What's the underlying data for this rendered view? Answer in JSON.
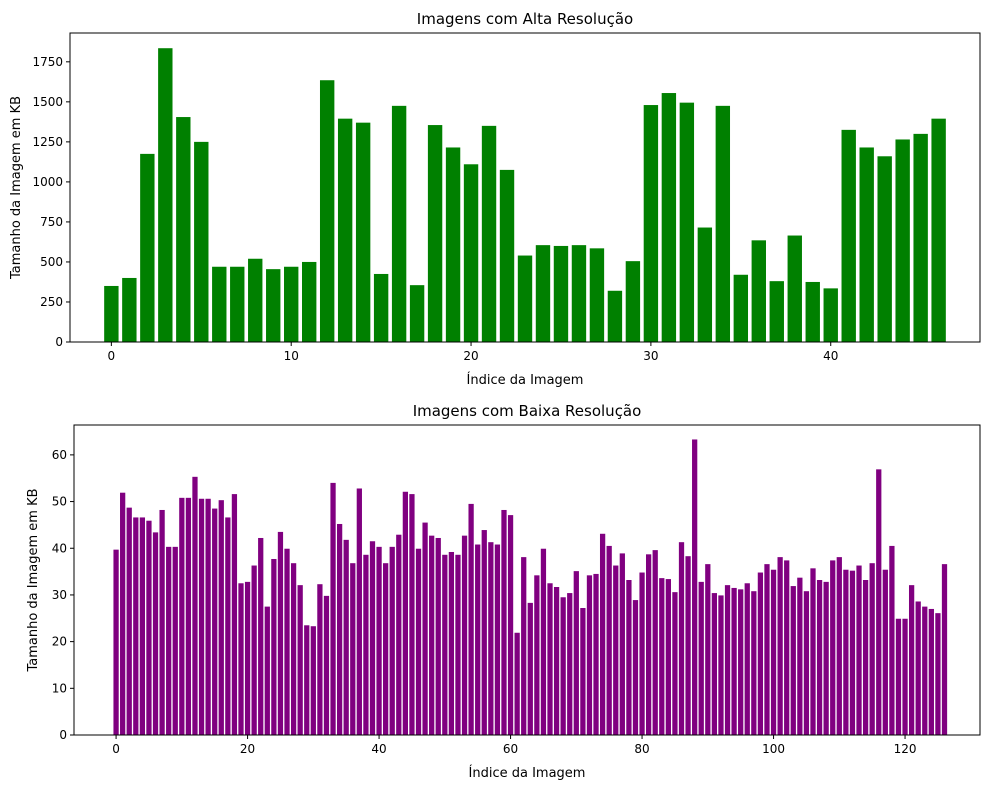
{
  "chart_data": [
    {
      "type": "bar",
      "title": "Imagens com Alta Resolução",
      "xlabel": "Índice da Imagem",
      "ylabel": "Tamanho da Imagem em KB",
      "color": "#008000",
      "xlim": [
        -2.3,
        48.3
      ],
      "ylim": [
        0,
        1930
      ],
      "xticks": [
        0,
        10,
        20,
        30,
        40
      ],
      "yticks": [
        0,
        250,
        500,
        750,
        1000,
        1250,
        1500,
        1750
      ],
      "x": [
        0,
        1,
        2,
        3,
        4,
        5,
        6,
        7,
        8,
        9,
        10,
        11,
        12,
        13,
        14,
        15,
        16,
        17,
        18,
        19,
        20,
        21,
        22,
        23,
        24,
        25,
        26,
        27,
        28,
        29,
        30,
        31,
        32,
        33,
        34,
        35,
        36,
        37,
        38,
        39,
        40,
        41,
        42,
        43,
        44,
        45,
        46
      ],
      "values": [
        350,
        400,
        1175,
        1835,
        1405,
        1250,
        470,
        470,
        520,
        455,
        470,
        500,
        1635,
        1395,
        1370,
        425,
        1475,
        355,
        1355,
        1215,
        1110,
        1350,
        1075,
        540,
        605,
        600,
        605,
        585,
        320,
        505,
        1480,
        1555,
        1495,
        715,
        1475,
        420,
        635,
        380,
        665,
        375,
        335,
        1325,
        1215,
        1160,
        1265,
        1300,
        1395
      ]
    },
    {
      "type": "bar",
      "title": "Imagens com Baixa Resolução",
      "xlabel": "Índice da Imagem",
      "ylabel": "Tamanho da Imagem em KB",
      "color": "#800080",
      "xlim": [
        -6.4,
        131.4
      ],
      "ylim": [
        0,
        66.4
      ],
      "xticks": [
        0,
        20,
        40,
        60,
        80,
        100,
        120
      ],
      "yticks": [
        0,
        10,
        20,
        30,
        40,
        50,
        60
      ],
      "x": [
        0,
        1,
        2,
        3,
        4,
        5,
        6,
        7,
        8,
        9,
        10,
        11,
        12,
        13,
        14,
        15,
        16,
        17,
        18,
        19,
        20,
        21,
        22,
        23,
        24,
        25,
        26,
        27,
        28,
        29,
        30,
        31,
        32,
        33,
        34,
        35,
        36,
        37,
        38,
        39,
        40,
        41,
        42,
        43,
        44,
        45,
        46,
        47,
        48,
        49,
        50,
        51,
        52,
        53,
        54,
        55,
        56,
        57,
        58,
        59,
        60,
        61,
        62,
        63,
        64,
        65,
        66,
        67,
        68,
        69,
        70,
        71,
        72,
        73,
        74,
        75,
        76,
        77,
        78,
        79,
        80,
        81,
        82,
        83,
        84,
        85,
        86,
        87,
        88,
        89,
        90,
        91,
        92,
        93,
        94,
        95,
        96,
        97,
        98,
        99,
        100,
        101,
        102,
        103,
        104,
        105,
        106,
        107,
        108,
        109,
        110,
        111,
        112,
        113,
        114,
        115,
        116,
        117,
        118,
        119,
        120,
        121,
        122,
        123,
        124,
        125,
        126
      ],
      "values": [
        39.7,
        51.9,
        48.7,
        46.6,
        46.6,
        45.9,
        43.4,
        48.2,
        40.3,
        40.3,
        50.8,
        50.8,
        55.3,
        50.6,
        50.6,
        48.5,
        50.3,
        46.6,
        51.6,
        32.5,
        32.8,
        36.3,
        42.2,
        27.5,
        37.7,
        43.5,
        39.9,
        36.8,
        32.1,
        23.5,
        23.3,
        32.3,
        29.8,
        54.0,
        45.2,
        41.8,
        36.8,
        52.8,
        38.6,
        41.5,
        40.3,
        36.8,
        40.3,
        42.9,
        52.1,
        51.6,
        39.9,
        45.5,
        42.7,
        42.2,
        38.6,
        39.2,
        38.6,
        42.7,
        49.5,
        40.8,
        43.9,
        41.3,
        40.8,
        48.2,
        47.1,
        21.9,
        38.1,
        28.3,
        34.2,
        39.9,
        32.5,
        31.7,
        29.5,
        30.4,
        35.1,
        27.2,
        34.2,
        34.5,
        43.1,
        40.5,
        36.3,
        38.9,
        33.2,
        28.9,
        34.8,
        38.7,
        39.6,
        33.6,
        33.4,
        30.6,
        41.3,
        38.3,
        63.3,
        32.8,
        36.6,
        30.4,
        29.9,
        32.1,
        31.5,
        31.2,
        32.5,
        30.8,
        34.8,
        36.6,
        35.4,
        38.1,
        37.4,
        31.9,
        33.7,
        30.8,
        35.7,
        33.2,
        32.8,
        37.4,
        38.1,
        35.4,
        35.2,
        36.3,
        33.2,
        36.8,
        56.9,
        35.4,
        40.5,
        24.9,
        24.9,
        32.1,
        28.6,
        27.5,
        27.0,
        26.1,
        36.6
      ]
    }
  ]
}
